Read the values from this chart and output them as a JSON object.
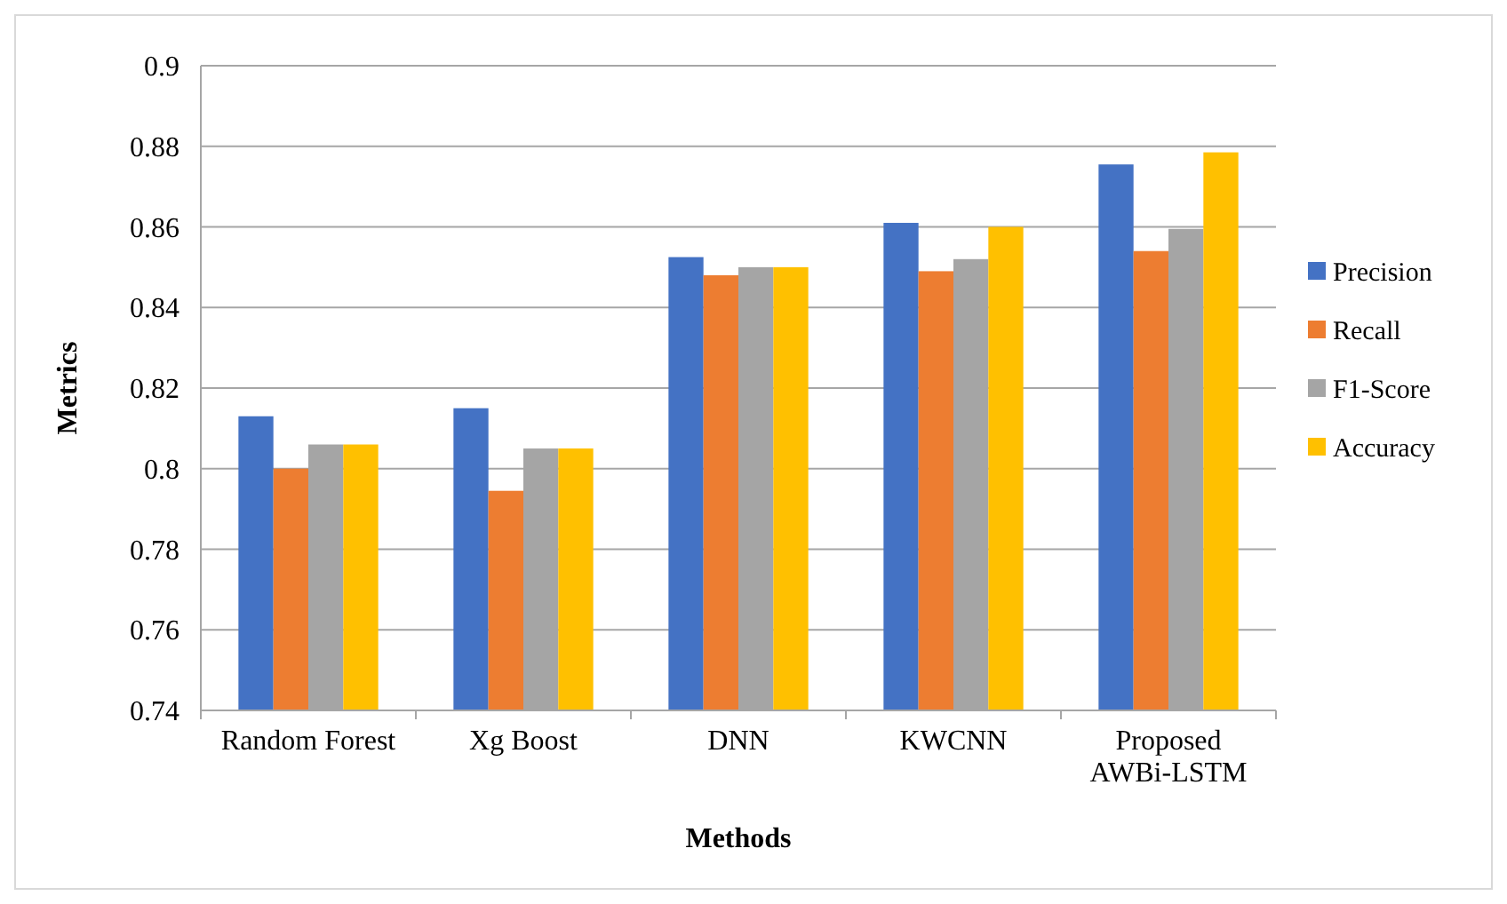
{
  "chart_data": {
    "type": "bar",
    "xlabel": "Methods",
    "ylabel": "Metrics",
    "categories": [
      "Random Forest",
      "Xg Boost",
      "DNN",
      "KWCNN",
      "Proposed AWBi-LSTM"
    ],
    "series": [
      {
        "name": "Precision",
        "color": "#4472c4",
        "values": [
          0.813,
          0.815,
          0.8525,
          0.861,
          0.8755
        ]
      },
      {
        "name": "Recall",
        "color": "#ed7d31",
        "values": [
          0.8,
          0.7945,
          0.848,
          0.849,
          0.854
        ]
      },
      {
        "name": "F1-Score",
        "color": "#a5a5a5",
        "values": [
          0.806,
          0.805,
          0.85,
          0.852,
          0.8595
        ]
      },
      {
        "name": "Accuracy",
        "color": "#ffc000",
        "values": [
          0.806,
          0.805,
          0.85,
          0.86,
          0.8785
        ]
      }
    ],
    "ylim": [
      0.74,
      0.9
    ],
    "yticks": [
      0.74,
      0.76,
      0.78,
      0.8,
      0.82,
      0.84,
      0.86,
      0.88,
      0.9
    ],
    "grid": "y",
    "legend": "right"
  }
}
